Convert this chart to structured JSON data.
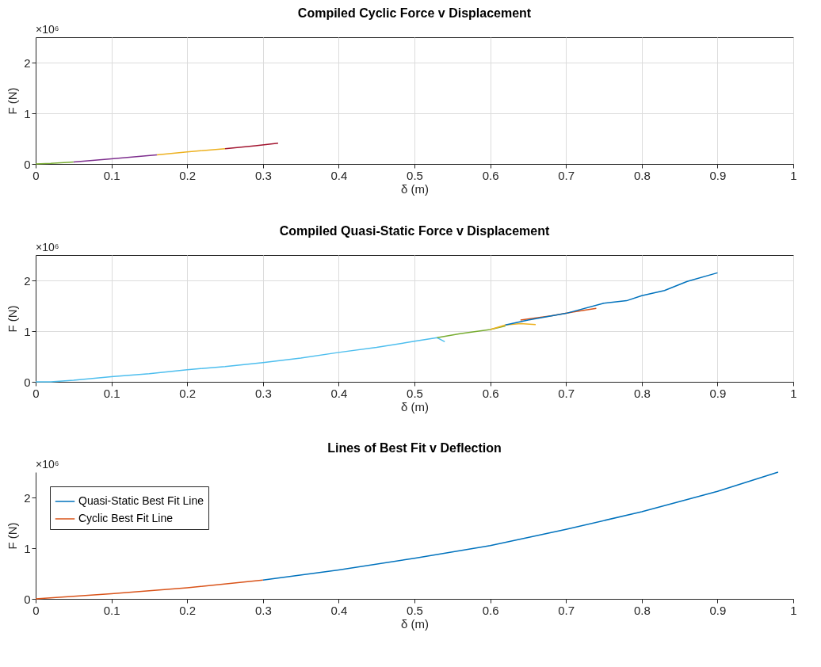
{
  "chart_data": [
    {
      "type": "line",
      "title": "Compiled Cyclic Force v Displacement",
      "xlabel": "δ (m)",
      "ylabel": "F (N)",
      "annotations": [
        "×10⁶"
      ],
      "xlim": [
        0,
        1
      ],
      "xticks": [
        0,
        0.1,
        0.2,
        0.3,
        0.4,
        0.5,
        0.6,
        0.7,
        0.8,
        0.9,
        1
      ],
      "ylim": [
        0,
        2.5
      ],
      "yticks": [
        0,
        1,
        2
      ],
      "grid": true,
      "series": [
        {
          "color": "#77ac30",
          "x": [
            0,
            0.02,
            0.05
          ],
          "values": [
            0,
            0.01,
            0.04
          ]
        },
        {
          "color": "#7e2f8e",
          "x": [
            0.05,
            0.1,
            0.16
          ],
          "values": [
            0.04,
            0.1,
            0.18
          ]
        },
        {
          "color": "#edb120",
          "x": [
            0.16,
            0.2,
            0.25
          ],
          "values": [
            0.18,
            0.24,
            0.3
          ]
        },
        {
          "color": "#a2142f",
          "x": [
            0.25,
            0.29,
            0.32
          ],
          "values": [
            0.3,
            0.36,
            0.41
          ]
        }
      ]
    },
    {
      "type": "line",
      "title": "Compiled Quasi-Static Force v Displacement",
      "xlabel": "δ (m)",
      "ylabel": "F (N)",
      "annotations": [
        "×10⁶"
      ],
      "xlim": [
        0,
        1
      ],
      "xticks": [
        0,
        0.1,
        0.2,
        0.3,
        0.4,
        0.5,
        0.6,
        0.7,
        0.8,
        0.9,
        1
      ],
      "ylim": [
        0,
        2.5
      ],
      "yticks": [
        0,
        1,
        2
      ],
      "grid": true,
      "series": [
        {
          "color": "#4dbeee",
          "x": [
            0,
            0.02,
            0.05,
            0.1,
            0.15,
            0.2,
            0.25,
            0.3,
            0.35,
            0.4,
            0.45,
            0.5,
            0.53,
            0.54
          ],
          "values": [
            0,
            0,
            0.03,
            0.1,
            0.16,
            0.24,
            0.3,
            0.38,
            0.47,
            0.58,
            0.68,
            0.8,
            0.87,
            0.79
          ]
        },
        {
          "color": "#77ac30",
          "x": [
            0.53,
            0.56,
            0.6,
            0.62
          ],
          "values": [
            0.87,
            0.95,
            1.03,
            1.1
          ]
        },
        {
          "color": "#edb120",
          "x": [
            0.6,
            0.62,
            0.64,
            0.66
          ],
          "values": [
            1.03,
            1.12,
            1.15,
            1.13
          ]
        },
        {
          "color": "#d95319",
          "x": [
            0.64,
            0.68,
            0.71,
            0.74
          ],
          "values": [
            1.22,
            1.3,
            1.38,
            1.45
          ]
        },
        {
          "color": "#0072bd",
          "x": [
            0.62,
            0.65,
            0.7,
            0.75,
            0.78,
            0.8,
            0.83,
            0.86,
            0.9
          ],
          "values": [
            1.12,
            1.22,
            1.35,
            1.55,
            1.6,
            1.7,
            1.8,
            1.98,
            2.15
          ]
        }
      ]
    },
    {
      "type": "line",
      "title": "Lines of Best Fit v Deflection",
      "xlabel": "δ (m)",
      "ylabel": "F (N)",
      "annotations": [
        "×10⁶"
      ],
      "xlim": [
        0,
        1
      ],
      "xticks": [
        0,
        0.1,
        0.2,
        0.3,
        0.4,
        0.5,
        0.6,
        0.7,
        0.8,
        0.9,
        1
      ],
      "ylim": [
        0,
        2.5
      ],
      "yticks": [
        0,
        1,
        2
      ],
      "grid": false,
      "legend": "top left",
      "series": [
        {
          "name": "Quasi-Static Best Fit Line",
          "color": "#0072bd",
          "x": [
            0.3,
            0.4,
            0.5,
            0.6,
            0.7,
            0.8,
            0.9,
            0.98
          ],
          "values": [
            0.37,
            0.57,
            0.8,
            1.05,
            1.37,
            1.72,
            2.12,
            2.5
          ]
        },
        {
          "name": "Cyclic Best Fit Line",
          "color": "#d95319",
          "x": [
            0,
            0.1,
            0.2,
            0.3
          ],
          "values": [
            0,
            0.1,
            0.22,
            0.37
          ]
        }
      ]
    }
  ]
}
